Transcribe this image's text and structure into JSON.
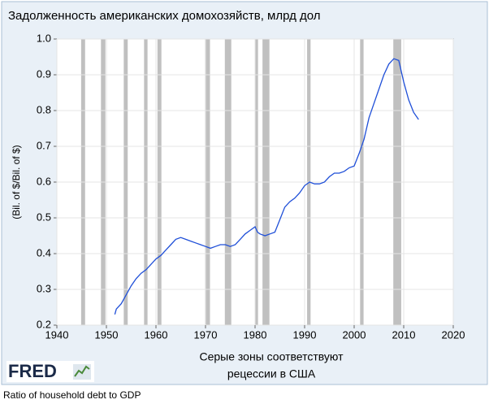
{
  "chart_data": {
    "type": "line",
    "title": "Задолженность американских домохозяйств, млрд дол",
    "y_label": "(Bil. of $/Bil. of $)",
    "x_label": [
      "Серые зоны соответствуют",
      "рецессии в США"
    ],
    "logo": "FRED",
    "caption": "Ratio of household debt to GDP",
    "x": [
      1951.7,
      1952,
      1953,
      1954,
      1955,
      1956,
      1957,
      1958,
      1959,
      1960,
      1961,
      1962,
      1963,
      1964,
      1965,
      1966,
      1967,
      1968,
      1969,
      1970,
      1971,
      1972,
      1973,
      1974,
      1975,
      1976,
      1977,
      1978,
      1979,
      1980,
      1980.5,
      1981,
      1982,
      1983,
      1984,
      1985,
      1986,
      1987,
      1988,
      1989,
      1990,
      1991,
      1992,
      1993,
      1994,
      1995,
      1996,
      1997,
      1998,
      1999,
      2000,
      2001,
      2002,
      2003,
      2004,
      2005,
      2006,
      2007,
      2008,
      2009,
      2010,
      2011,
      2012,
      2013
    ],
    "series": [
      {
        "name": "Ratio of household debt to GDP",
        "color": "#1f4fd8",
        "values": [
          0.23,
          0.245,
          0.26,
          0.285,
          0.31,
          0.33,
          0.345,
          0.355,
          0.37,
          0.385,
          0.395,
          0.41,
          0.425,
          0.44,
          0.445,
          0.44,
          0.435,
          0.43,
          0.425,
          0.42,
          0.415,
          0.42,
          0.425,
          0.425,
          0.42,
          0.425,
          0.44,
          0.455,
          0.465,
          0.475,
          0.46,
          0.455,
          0.45,
          0.455,
          0.46,
          0.495,
          0.53,
          0.545,
          0.555,
          0.57,
          0.59,
          0.6,
          0.595,
          0.595,
          0.6,
          0.615,
          0.625,
          0.625,
          0.63,
          0.64,
          0.645,
          0.68,
          0.72,
          0.78,
          0.82,
          0.86,
          0.9,
          0.93,
          0.945,
          0.94,
          0.88,
          0.83,
          0.795,
          0.775
        ]
      }
    ],
    "recessions": [
      [
        1944.9,
        1945.7
      ],
      [
        1948.9,
        1949.8
      ],
      [
        1953.5,
        1954.3
      ],
      [
        1957.6,
        1958.3
      ],
      [
        1960.3,
        1961.1
      ],
      [
        1969.9,
        1970.9
      ],
      [
        1973.9,
        1975.2
      ],
      [
        1980,
        1980.6
      ],
      [
        1981.5,
        1982.9
      ],
      [
        1990.5,
        1991.2
      ],
      [
        2001.2,
        2001.9
      ],
      [
        2007.9,
        2009.5
      ]
    ],
    "recession_color": "#c0c0c0",
    "xlim": [
      1940,
      2020
    ],
    "xticks": [
      1940,
      1950,
      1960,
      1970,
      1980,
      1990,
      2000,
      2010,
      2020
    ],
    "ylim": [
      0.2,
      1
    ],
    "yticks": [
      0.2,
      0.3,
      0.4,
      0.5,
      0.6,
      0.7,
      0.8,
      0.9,
      {
        "value": 1,
        "label": "1.0"
      }
    ],
    "grid": true
  }
}
